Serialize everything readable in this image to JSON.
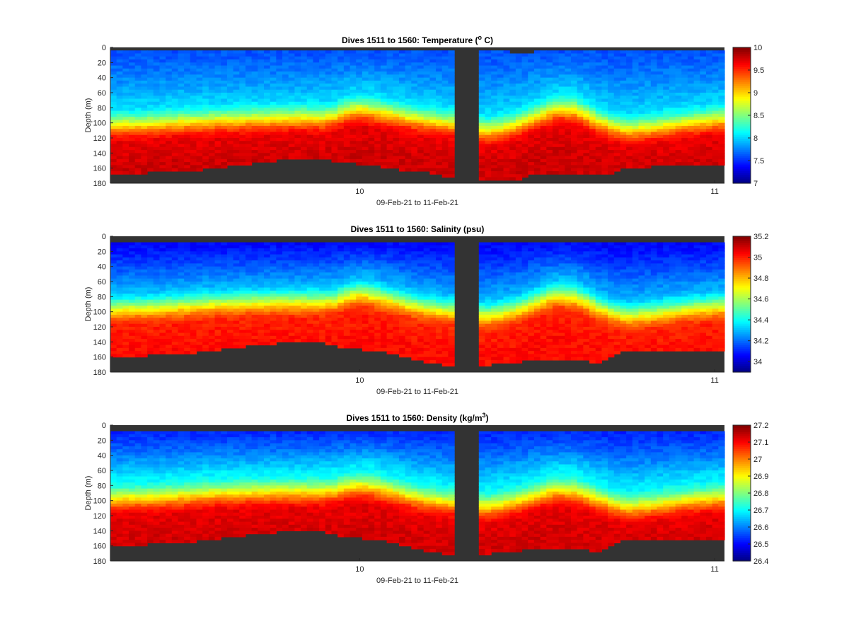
{
  "chart_data": [
    {
      "type": "heatmap",
      "title_text": "Dives 1511 to 1560: Temperature (",
      "title_sup": "o",
      "title_tail": " C)",
      "xlabel": "09-Feb-21 to 11-Feb-21",
      "ylabel": "Depth (m)",
      "ylim": [
        0,
        180
      ],
      "y_reversed": true,
      "yticks": [
        "0",
        "20",
        "40",
        "60",
        "80",
        "100",
        "120",
        "140",
        "160",
        "180"
      ],
      "xticks": [
        {
          "label": "10",
          "frac": 0.406
        },
        {
          "label": "11",
          "frac": 0.984
        }
      ],
      "colorbar": {
        "colormap": "jet",
        "min": 7,
        "max": 10,
        "ticks": [
          "7",
          "7.5",
          "8",
          "8.5",
          "9",
          "9.5",
          "10"
        ],
        "tick_values": [
          7,
          7.5,
          8,
          8.5,
          9,
          9.5,
          10
        ]
      },
      "profile": {
        "surface": 7.6,
        "mid": 8.3,
        "deep": 9.7
      },
      "thermocline_depth": [
        105,
        104,
        104,
        103,
        102,
        101,
        100,
        100,
        99,
        98,
        98,
        97,
        97,
        96,
        96,
        95,
        95,
        96,
        92,
        86,
        83,
        86,
        89,
        92,
        95,
        98,
        100,
        102,
        104,
        108,
        112,
        110,
        106,
        100,
        93,
        87,
        83,
        85,
        92,
        100,
        106,
        110,
        110,
        108,
        106,
        104,
        102,
        100,
        98,
        97
      ],
      "bottom_depth": [
        168,
        167,
        166,
        166,
        165,
        165,
        164,
        163,
        161,
        159,
        157,
        155,
        153,
        150,
        148,
        146,
        146,
        148,
        152,
        153,
        155,
        157,
        159,
        162,
        164,
        165,
        168,
        172,
        175,
        177,
        176,
        176,
        177,
        172,
        168,
        166,
        166,
        168,
        168,
        170,
        166,
        160,
        160,
        158,
        157,
        156,
        156,
        155,
        155,
        155
      ],
      "surface_gap": [
        5,
        6,
        5,
        5,
        6,
        5,
        5,
        6,
        5,
        5,
        5,
        6,
        5,
        5,
        5,
        5,
        5,
        5,
        5,
        5,
        5,
        5,
        5,
        5,
        5,
        5,
        5,
        5,
        5,
        5,
        5,
        5,
        6,
        8,
        6,
        5,
        5,
        5,
        5,
        5,
        5,
        5,
        5,
        5,
        5,
        5,
        5,
        5,
        5,
        5
      ]
    },
    {
      "type": "heatmap",
      "title_text": "Dives 1511 to 1560: Salinity (psu)",
      "title_sup": "",
      "title_tail": "",
      "xlabel": "09-Feb-21 to 11-Feb-21",
      "ylabel": "Depth (m)",
      "ylim": [
        0,
        180
      ],
      "y_reversed": true,
      "yticks": [
        "0",
        "20",
        "40",
        "60",
        "80",
        "100",
        "120",
        "140",
        "160",
        "180"
      ],
      "xticks": [
        {
          "label": "10",
          "frac": 0.406
        },
        {
          "label": "11",
          "frac": 0.984
        }
      ],
      "colorbar": {
        "colormap": "jet",
        "min": 33.9,
        "max": 35.2,
        "ticks": [
          "34",
          "34.2",
          "34.4",
          "34.6",
          "34.8",
          "35",
          "35.2"
        ],
        "tick_values": [
          34,
          34.2,
          34.4,
          34.6,
          34.8,
          35,
          35.2
        ]
      },
      "profile": {
        "surface": 34.05,
        "mid": 34.45,
        "deep": 35.0
      },
      "thermocline_depth": [
        98,
        97,
        96,
        96,
        95,
        94,
        93,
        92,
        91,
        90,
        90,
        89,
        89,
        88,
        88,
        88,
        88,
        88,
        86,
        80,
        76,
        80,
        84,
        88,
        92,
        96,
        98,
        100,
        102,
        104,
        106,
        104,
        100,
        95,
        88,
        82,
        79,
        82,
        88,
        96,
        102,
        106,
        106,
        104,
        102,
        100,
        98,
        96,
        95,
        94
      ],
      "bottom_depth": [
        160,
        159,
        158,
        158,
        157,
        156,
        155,
        154,
        152,
        150,
        148,
        146,
        144,
        142,
        141,
        140,
        140,
        142,
        145,
        148,
        150,
        152,
        154,
        158,
        162,
        166,
        169,
        172,
        174,
        174,
        172,
        168,
        170,
        166,
        164,
        162,
        162,
        164,
        166,
        168,
        160,
        152,
        152,
        150,
        150,
        150,
        150,
        150,
        150,
        150
      ],
      "surface_gap": [
        8,
        9,
        8,
        8,
        9,
        8,
        8,
        9,
        8,
        8,
        8,
        8,
        8,
        8,
        8,
        8,
        8,
        8,
        8,
        8,
        8,
        8,
        8,
        8,
        8,
        8,
        8,
        8,
        8,
        8,
        8,
        8,
        8,
        8,
        8,
        8,
        8,
        8,
        8,
        8,
        8,
        8,
        8,
        8,
        8,
        8,
        8,
        8,
        8,
        8
      ]
    },
    {
      "type": "heatmap",
      "title_text": "Dives 1511 to 1560: Density (kg/m",
      "title_sup": "3",
      "title_tail": ")",
      "xlabel": "09-Feb-21 to 11-Feb-21",
      "ylabel": "Depth (m)",
      "ylim": [
        0,
        180
      ],
      "y_reversed": true,
      "yticks": [
        "0",
        "20",
        "40",
        "60",
        "80",
        "100",
        "120",
        "140",
        "160",
        "180"
      ],
      "xticks": [
        {
          "label": "10",
          "frac": 0.406
        },
        {
          "label": "11",
          "frac": 0.984
        }
      ],
      "colorbar": {
        "colormap": "jet",
        "min": 26.4,
        "max": 27.2,
        "ticks": [
          "26.4",
          "26.5",
          "26.6",
          "26.7",
          "26.8",
          "26.9",
          "27",
          "27.1",
          "27.2"
        ],
        "tick_values": [
          26.4,
          26.5,
          26.6,
          26.7,
          26.8,
          26.9,
          27.0,
          27.1,
          27.2
        ]
      },
      "profile": {
        "surface": 26.52,
        "mid": 26.82,
        "deep": 27.12
      },
      "thermocline_depth": [
        100,
        99,
        98,
        98,
        97,
        96,
        95,
        94,
        93,
        92,
        92,
        91,
        91,
        90,
        90,
        90,
        90,
        90,
        88,
        84,
        82,
        84,
        88,
        92,
        96,
        100,
        102,
        104,
        106,
        108,
        110,
        108,
        104,
        100,
        95,
        90,
        88,
        90,
        95,
        100,
        106,
        110,
        110,
        108,
        106,
        104,
        102,
        100,
        99,
        98
      ],
      "bottom_depth": [
        160,
        159,
        158,
        158,
        157,
        156,
        155,
        154,
        152,
        150,
        148,
        146,
        144,
        142,
        141,
        140,
        140,
        142,
        145,
        148,
        150,
        152,
        154,
        158,
        162,
        166,
        169,
        172,
        174,
        174,
        172,
        168,
        170,
        166,
        164,
        162,
        162,
        164,
        166,
        168,
        160,
        152,
        152,
        150,
        150,
        150,
        150,
        150,
        150,
        150
      ],
      "surface_gap": [
        8,
        9,
        8,
        8,
        9,
        8,
        8,
        9,
        8,
        8,
        8,
        8,
        8,
        8,
        8,
        8,
        8,
        8,
        8,
        8,
        8,
        8,
        8,
        8,
        8,
        8,
        8,
        8,
        8,
        8,
        8,
        8,
        8,
        8,
        8,
        8,
        8,
        8,
        8,
        8,
        8,
        8,
        8,
        8,
        8,
        8,
        8,
        8,
        8,
        8
      ]
    }
  ],
  "colors": {
    "background": "#ffffff",
    "nodata": "#333333",
    "axis": "#262626"
  }
}
